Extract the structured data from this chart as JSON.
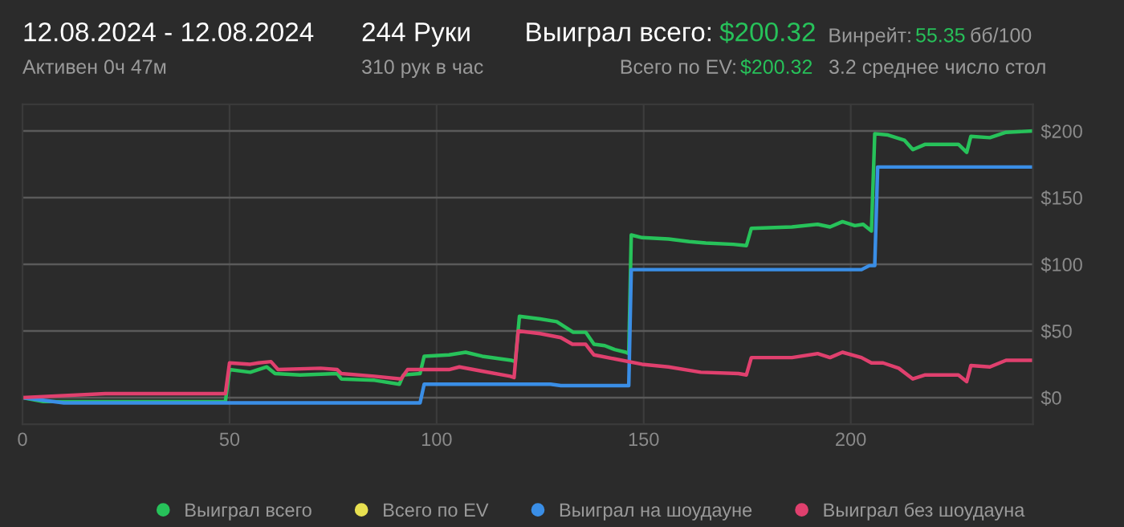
{
  "chart_data": {
    "type": "line",
    "title": "12.08.2024 - 12.08.2024",
    "subtitle": "Активен 0ч 47м",
    "annotations": [
      "244 Руки",
      "310 рук в час",
      "Выиграл всего:",
      "$200.32",
      "Всего по EV:",
      "$200.32",
      "Винрейт:",
      "55.35",
      "бб/100",
      "3.2 среднее число стол"
    ],
    "xlim": [
      0,
      244
    ],
    "xticks": [
      0,
      50,
      100,
      150,
      200
    ],
    "ylim": [
      -20,
      220
    ],
    "yticks": [
      {
        "value": 0,
        "label": "$0"
      },
      {
        "value": 50,
        "label": "$50"
      },
      {
        "value": 100,
        "label": "$100"
      },
      {
        "value": 150,
        "label": "$150"
      },
      {
        "value": 200,
        "label": "$200"
      }
    ],
    "grid": true,
    "legend": "bottom",
    "marker": "none",
    "line_style": "solid",
    "series": [
      {
        "name": "Выиграл всего",
        "color": "#27c25a",
        "x": [
          0,
          5,
          49,
          50,
          55,
          59,
          61,
          67,
          76,
          77,
          85,
          91,
          92,
          96,
          97,
          103,
          107,
          111,
          118,
          119,
          120,
          125,
          129,
          133,
          136,
          138,
          140.6,
          143,
          145.7,
          146.4,
          147,
          149.6,
          156,
          161,
          165,
          171.6,
          174.8,
          176,
          185.8,
          192,
          195,
          198,
          201,
          203,
          205,
          205.8,
          209,
          213,
          215,
          218,
          226,
          228,
          229,
          233.6,
          237.5,
          244
        ],
        "values": [
          0,
          -3,
          -3,
          21,
          19,
          23,
          18,
          17,
          18,
          14,
          13,
          10,
          17,
          18,
          31,
          32,
          34,
          31,
          28,
          27,
          61,
          59,
          57,
          49,
          49,
          40,
          39,
          36,
          34,
          33,
          122,
          120,
          119,
          117,
          116,
          115,
          114,
          127,
          128,
          130,
          128,
          132,
          129,
          130,
          125,
          198,
          197,
          193,
          186,
          190,
          190,
          184,
          196,
          195,
          199,
          200
        ]
      },
      {
        "name": "Всего по EV",
        "color": "#e8e050"
      },
      {
        "name": "Выиграл на шоудауне",
        "color": "#3a8ee6",
        "x": [
          0,
          10,
          96,
          97,
          127.5,
          130,
          146.4,
          147,
          202.6,
          204.5,
          205.8,
          206.5,
          244
        ],
        "values": [
          0,
          -4,
          -4,
          10,
          10,
          9,
          9,
          96,
          96,
          99,
          99,
          173,
          173
        ]
      },
      {
        "name": "Выиграл без шоудауна",
        "color": "#e0406e",
        "x": [
          0,
          20,
          49,
          50,
          55,
          57,
          60,
          61.7,
          72,
          76,
          77,
          85,
          91.4,
          93,
          97.8,
          103,
          105.5,
          110.7,
          117.8,
          118.7,
          119.7,
          125,
          130,
          132.8,
          136,
          138,
          143,
          149.6,
          156,
          163.8,
          172.9,
          174.8,
          176,
          185.8,
          192,
          195,
          198,
          202.6,
          205,
          207.8,
          211.6,
          215,
          218,
          226,
          228,
          229,
          233.6,
          237.5,
          244
        ],
        "values": [
          0,
          3,
          3,
          26,
          25,
          26,
          27,
          21,
          22,
          21,
          18,
          16,
          14,
          21,
          21,
          21,
          23,
          20,
          16,
          15,
          50,
          48,
          45,
          40,
          40,
          32,
          29,
          25,
          23,
          19,
          18,
          17,
          30,
          30,
          33,
          30,
          34,
          30,
          26,
          26,
          22,
          14,
          17,
          17,
          12,
          24,
          23,
          28,
          28
        ]
      }
    ]
  }
}
